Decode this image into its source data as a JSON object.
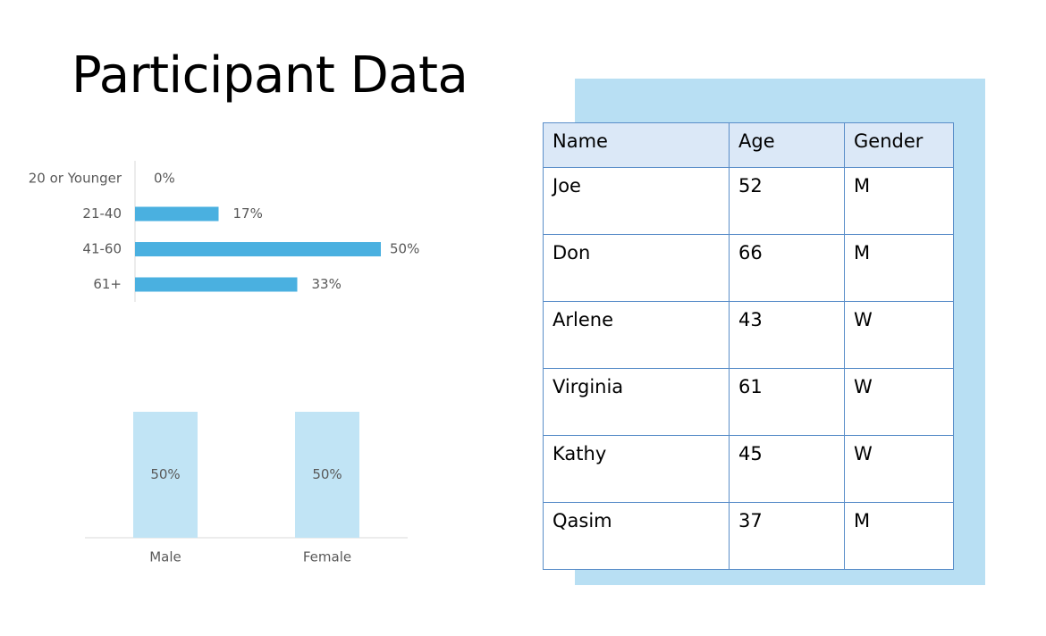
{
  "title": "Participant Data",
  "colors": {
    "age_bar": "#4ab0e0",
    "gender_bar": "#c1e4f5",
    "accent_block": "#b8dff3",
    "table_header": "#dbe8f7",
    "table_border": "#5a8ec9",
    "axis_line": "#d9d9d9",
    "label_text": "#595959"
  },
  "chart_data": [
    {
      "type": "bar",
      "orientation": "horizontal",
      "categories": [
        "20 or Younger",
        "21-40",
        "41-60",
        "61+"
      ],
      "values": [
        0,
        17,
        50,
        33
      ],
      "data_labels": [
        "0%",
        "17%",
        "50%",
        "33%"
      ],
      "xlim": [
        0,
        50
      ],
      "grid": false,
      "legend": "none"
    },
    {
      "type": "bar",
      "orientation": "vertical",
      "categories": [
        "Male",
        "Female"
      ],
      "values": [
        50,
        50
      ],
      "data_labels": [
        "50%",
        "50%"
      ],
      "ylim": [
        0,
        50
      ],
      "grid": false,
      "legend": "none"
    }
  ],
  "table": {
    "headers": [
      "Name",
      "Age",
      "Gender"
    ],
    "rows": [
      [
        "Joe",
        "52",
        "M"
      ],
      [
        "Don",
        "66",
        "M"
      ],
      [
        "Arlene",
        "43",
        "W"
      ],
      [
        "Virginia",
        "61",
        "W"
      ],
      [
        "Kathy",
        "45",
        "W"
      ],
      [
        "Qasim",
        "37",
        "M"
      ]
    ]
  }
}
